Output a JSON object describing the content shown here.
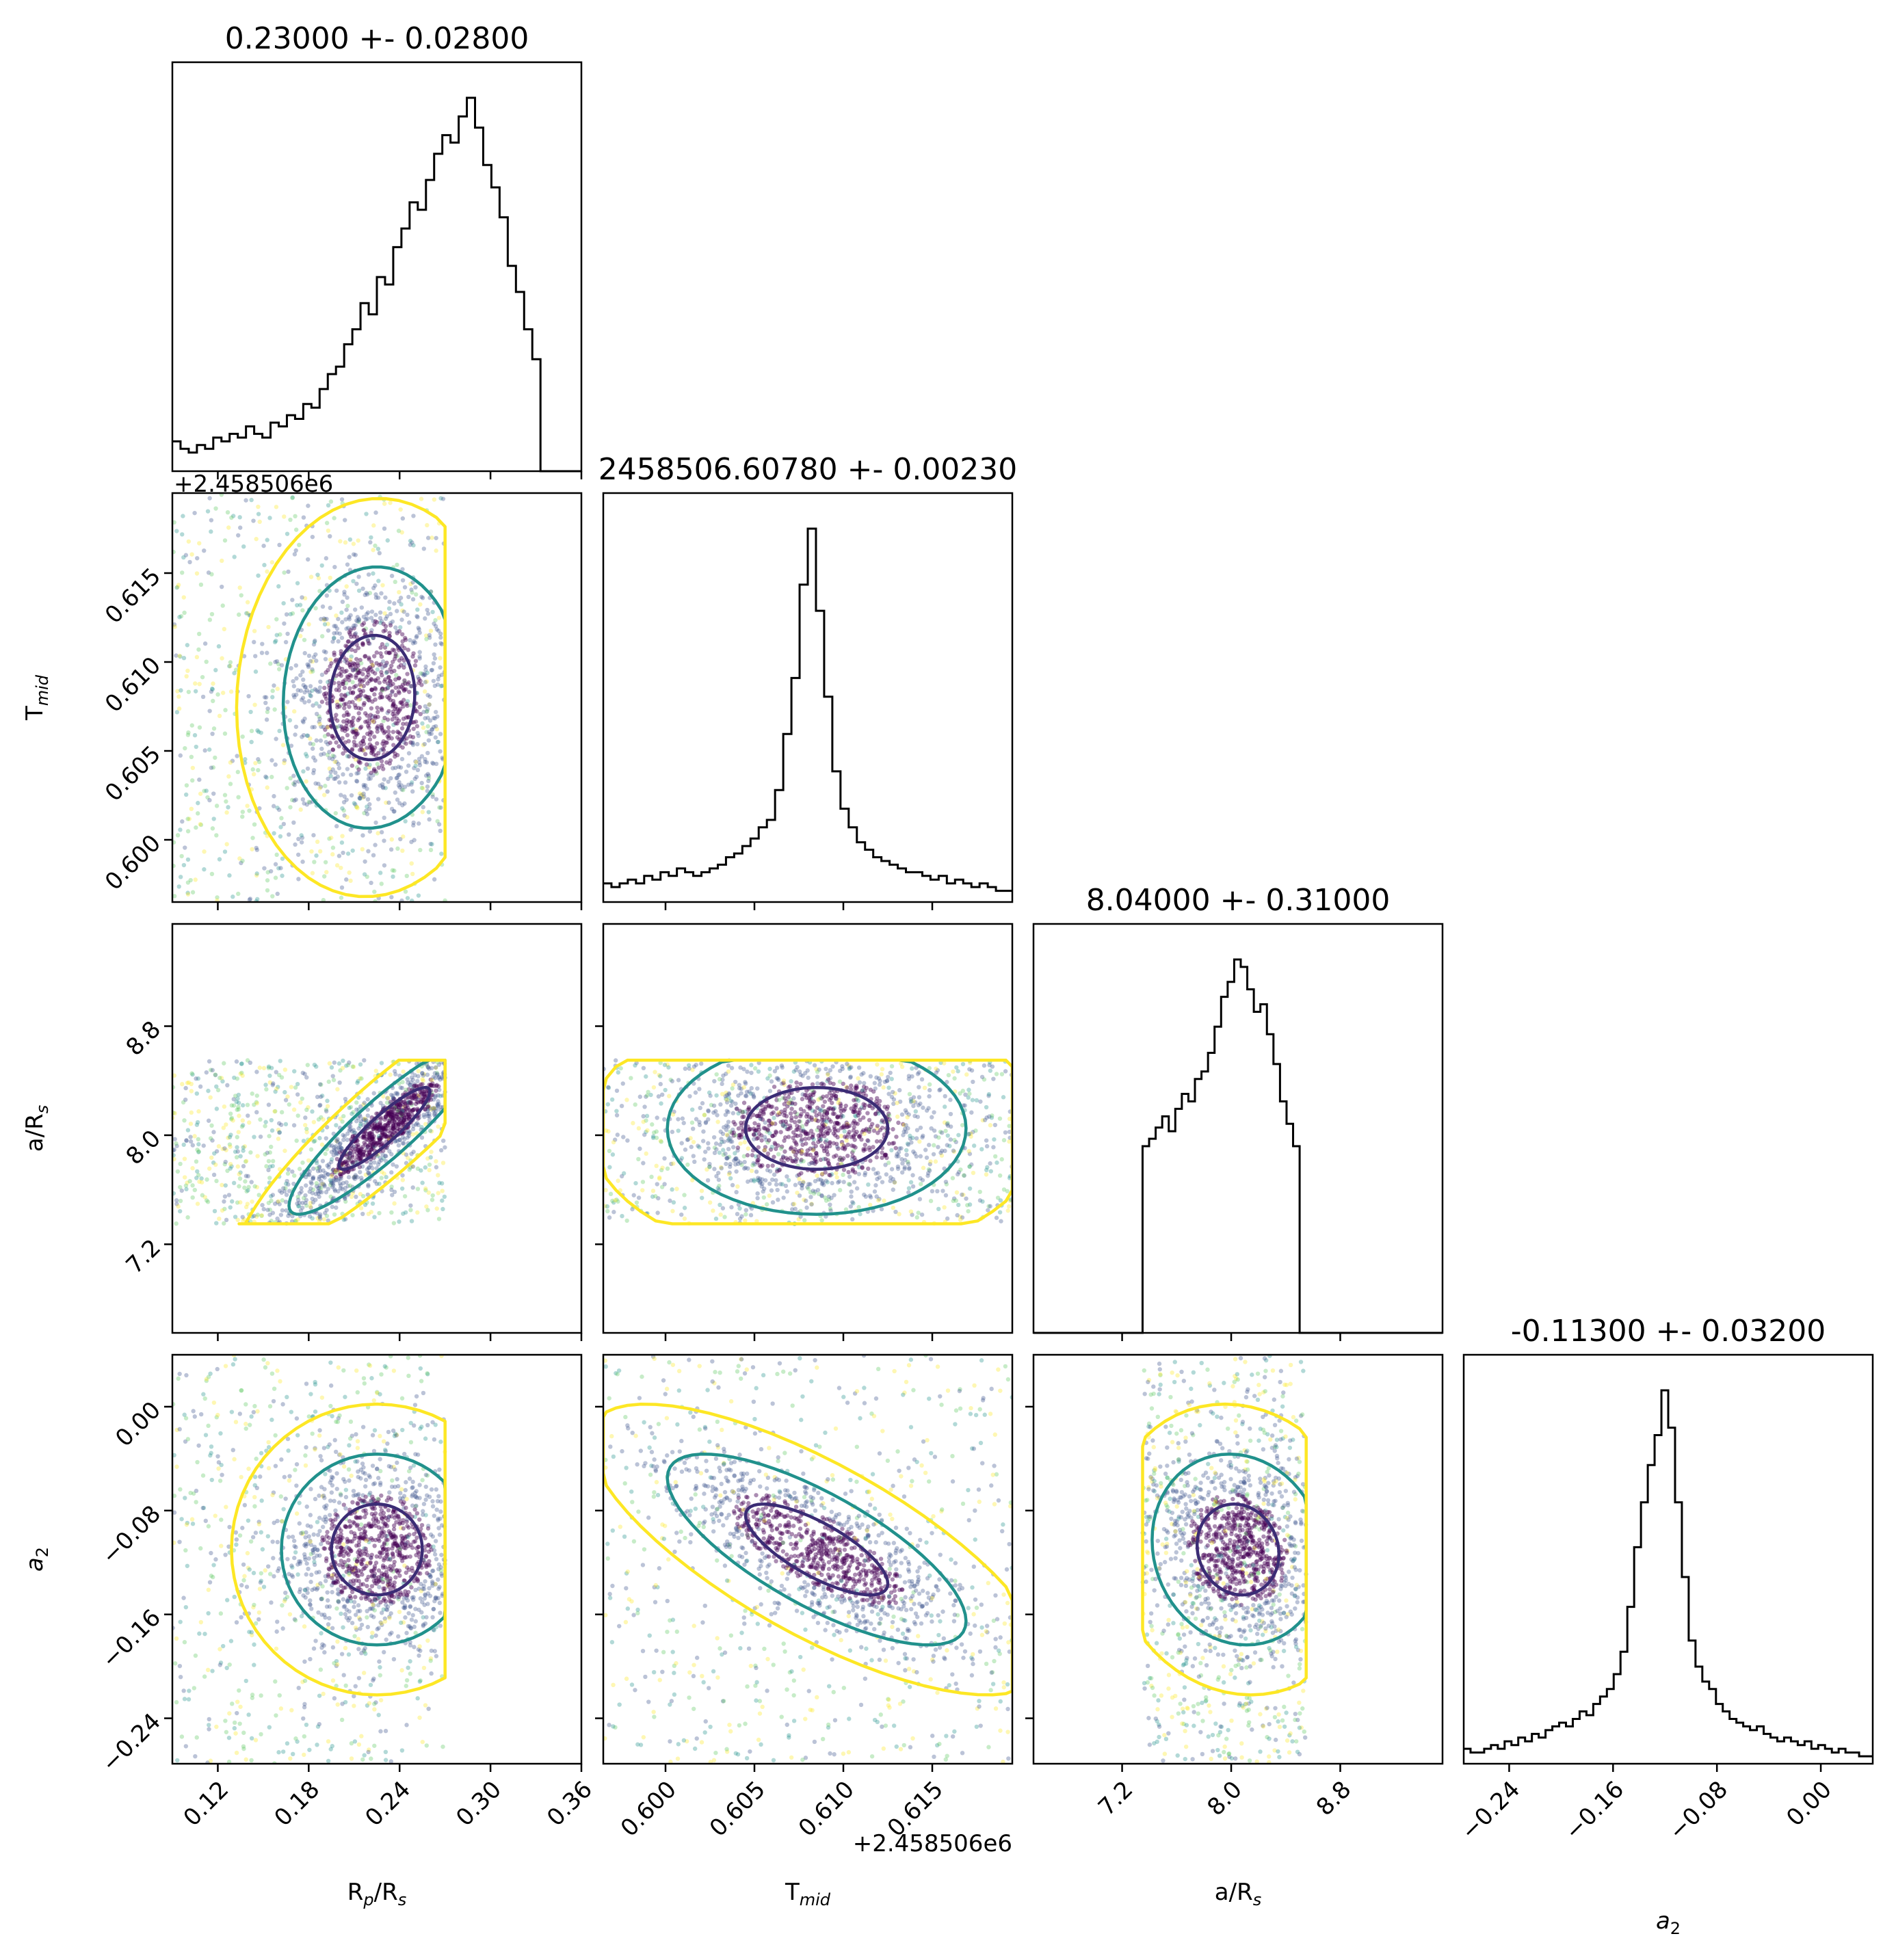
{
  "chart_data": {
    "type": "corner",
    "parameters": [
      {
        "key": "rp",
        "label_main": "R",
        "label_sub": "p",
        "label_mid": "/R",
        "label_sub2": "s",
        "title": "0.23000 +- 0.02800",
        "ticks": [
          0.12,
          0.18,
          0.24,
          0.3,
          0.36
        ],
        "tick_labels": [
          "0.12",
          "0.18",
          "0.24",
          "0.30",
          "0.36"
        ],
        "range": [
          0.09,
          0.36
        ],
        "scatter_range": [
          0.09,
          0.27
        ],
        "offset_text": ""
      },
      {
        "key": "tmid",
        "label_main": "T",
        "label_sub": "mid",
        "label_mid": "",
        "label_sub2": "",
        "title": "2458506.60780 +- 0.00230",
        "ticks": [
          0.6,
          0.605,
          0.61,
          0.615
        ],
        "tick_labels": [
          "0.600",
          "0.605",
          "0.610",
          "0.615"
        ],
        "range": [
          0.5965,
          0.6195
        ],
        "scatter_range": [
          0.5965,
          0.6195
        ],
        "offset_text": "+2.458506e6"
      },
      {
        "key": "ars",
        "label_main": "a/R",
        "label_sub": "s",
        "label_mid": "",
        "label_sub2": "",
        "title": "8.04000 +- 0.31000",
        "ticks": [
          7.2,
          8.0,
          8.8
        ],
        "tick_labels": [
          "7.2",
          "8.0",
          "8.8"
        ],
        "range": [
          6.55,
          9.55
        ],
        "scatter_range": [
          7.35,
          8.55
        ],
        "offset_text": ""
      },
      {
        "key": "a2",
        "label_main": "a",
        "label_sub": "2",
        "label_mid": "",
        "label_sub2": "",
        "label_italic": true,
        "title": "-0.11300 +- 0.03200",
        "ticks": [
          -0.24,
          -0.16,
          -0.08,
          0.0
        ],
        "tick_labels": [
          "−0.24",
          "−0.16",
          "−0.08",
          "0.00"
        ],
        "range": [
          -0.275,
          0.04
        ],
        "scatter_range": [
          -0.275,
          0.04
        ],
        "offset_text": ""
      }
    ],
    "row_offset_text": "+2.458506e6",
    "histograms": {
      "rp": {
        "bins": 50,
        "counts": [
          0.08,
          0.06,
          0.05,
          0.07,
          0.06,
          0.09,
          0.08,
          0.1,
          0.09,
          0.12,
          0.1,
          0.09,
          0.13,
          0.12,
          0.15,
          0.14,
          0.18,
          0.17,
          0.22,
          0.26,
          0.28,
          0.34,
          0.38,
          0.45,
          0.42,
          0.52,
          0.5,
          0.6,
          0.65,
          0.72,
          0.7,
          0.78,
          0.85,
          0.9,
          0.88,
          0.95,
          1.0,
          0.92,
          0.82,
          0.76,
          0.68,
          0.55,
          0.48,
          0.38,
          0.3,
          0.0,
          0.0,
          0.0,
          0.0,
          0.0
        ]
      },
      "tmid": {
        "bins": 50,
        "counts": [
          0.05,
          0.04,
          0.05,
          0.06,
          0.05,
          0.07,
          0.06,
          0.08,
          0.07,
          0.09,
          0.08,
          0.07,
          0.08,
          0.09,
          0.1,
          0.12,
          0.13,
          0.15,
          0.17,
          0.2,
          0.22,
          0.3,
          0.45,
          0.6,
          0.85,
          1.0,
          0.78,
          0.55,
          0.35,
          0.25,
          0.2,
          0.16,
          0.14,
          0.12,
          0.11,
          0.1,
          0.09,
          0.08,
          0.08,
          0.07,
          0.06,
          0.07,
          0.05,
          0.06,
          0.05,
          0.04,
          0.05,
          0.04,
          0.03,
          0.03
        ]
      },
      "ars": {
        "bins": 50,
        "counts": [
          0.0,
          0.0,
          0.0,
          0.0,
          0.0,
          0.0,
          0.0,
          0.0,
          0.0,
          0.0,
          0.0,
          0.0,
          0.0,
          0.0,
          0.0,
          0.0,
          0.0,
          0.0,
          0.0,
          0.0,
          0.0,
          0.0,
          0.0,
          0.0,
          0.0,
          0.0,
          0.0,
          0.0,
          0.0,
          0.0,
          0.0,
          0.0,
          0.0,
          0.0,
          0.0,
          0.0,
          0.0,
          0.0,
          0.0,
          0.0,
          0.0,
          0.0,
          0.0,
          0.0,
          0.0,
          0.0,
          0.0,
          0.0,
          0.0,
          0.0
        ],
        "bins_active": [
          0.5,
          0.52,
          0.55,
          0.58,
          0.54,
          0.6,
          0.64,
          0.62,
          0.68,
          0.7,
          0.75,
          0.82,
          0.9,
          0.94,
          1.0,
          0.98,
          0.92,
          0.86,
          0.88,
          0.8,
          0.72,
          0.62,
          0.56,
          0.5,
          0.0
        ],
        "active_range": [
          7.35,
          8.55
        ]
      },
      "a2": {
        "bins": 60,
        "counts": [
          0.04,
          0.03,
          0.03,
          0.04,
          0.05,
          0.04,
          0.06,
          0.05,
          0.07,
          0.06,
          0.08,
          0.07,
          0.09,
          0.1,
          0.11,
          0.1,
          0.12,
          0.14,
          0.13,
          0.16,
          0.18,
          0.2,
          0.24,
          0.3,
          0.42,
          0.58,
          0.7,
          0.8,
          0.88,
          1.0,
          0.9,
          0.7,
          0.5,
          0.33,
          0.26,
          0.22,
          0.2,
          0.16,
          0.14,
          0.12,
          0.11,
          0.1,
          0.09,
          0.1,
          0.08,
          0.07,
          0.06,
          0.07,
          0.06,
          0.05,
          0.06,
          0.04,
          0.05,
          0.04,
          0.03,
          0.04,
          0.03,
          0.03,
          0.02,
          0.02
        ]
      }
    },
    "pairs": [
      {
        "row": 1,
        "col": 0,
        "x": "rp",
        "y": "tmid",
        "centre": [
          0.222,
          0.608
        ],
        "spread": [
          0.028,
          0.0035
        ],
        "corr": 0.05
      },
      {
        "row": 2,
        "col": 0,
        "x": "rp",
        "y": "ars",
        "centre": [
          0.23,
          8.05
        ],
        "spread": [
          0.03,
          0.3
        ],
        "corr": 0.9
      },
      {
        "row": 2,
        "col": 1,
        "x": "tmid",
        "y": "ars",
        "centre": [
          0.6085,
          8.05
        ],
        "spread": [
          0.004,
          0.3
        ],
        "corr": 0.0
      },
      {
        "row": 3,
        "col": 0,
        "x": "rp",
        "y": "a2",
        "centre": [
          0.225,
          -0.11
        ],
        "spread": [
          0.03,
          0.035
        ],
        "corr": 0.0
      },
      {
        "row": 3,
        "col": 1,
        "x": "tmid",
        "y": "a2",
        "centre": [
          0.6085,
          -0.11
        ],
        "spread": [
          0.004,
          0.035
        ],
        "corr": -0.75
      },
      {
        "row": 3,
        "col": 2,
        "x": "ars",
        "y": "a2",
        "centre": [
          8.05,
          -0.11
        ],
        "spread": [
          0.3,
          0.035
        ],
        "corr": -0.1
      }
    ],
    "colors": {
      "hist": "#000000",
      "contour_inner": "#3b2c75",
      "contour_mid": "#21918c",
      "contour_outer": "#fde725",
      "points_dense": "#440154",
      "points_mid": "#3b528b",
      "points_teal": "#21918c",
      "points_green": "#5ec962",
      "points_yellow": "#fde725"
    }
  }
}
